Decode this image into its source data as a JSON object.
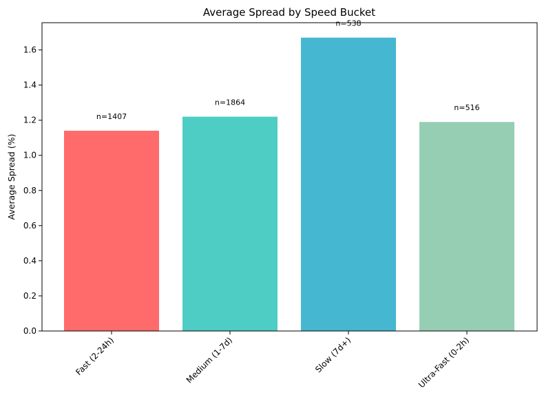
{
  "chart_data": {
    "type": "bar",
    "title": "Average Spread by Speed Bucket",
    "xlabel": "",
    "ylabel": "Average Spread (%)",
    "categories": [
      "Fast (2-24h)",
      "Medium (1-7d)",
      "Slow (7d+)",
      "Ultra-Fast (0-2h)"
    ],
    "values": [
      1.14,
      1.22,
      1.67,
      1.19
    ],
    "counts": [
      "n=1407",
      "n=1864",
      "n=538",
      "n=516"
    ],
    "colors": [
      "#ff6b6b",
      "#4ecdc4",
      "#45b7d1",
      "#96ceb4"
    ],
    "ylim": [
      0,
      1.755
    ],
    "yticks": [
      "0.0",
      "0.2",
      "0.4",
      "0.6",
      "0.8",
      "1.0",
      "1.2",
      "1.4",
      "1.6"
    ],
    "grid": false,
    "legend": "none"
  }
}
